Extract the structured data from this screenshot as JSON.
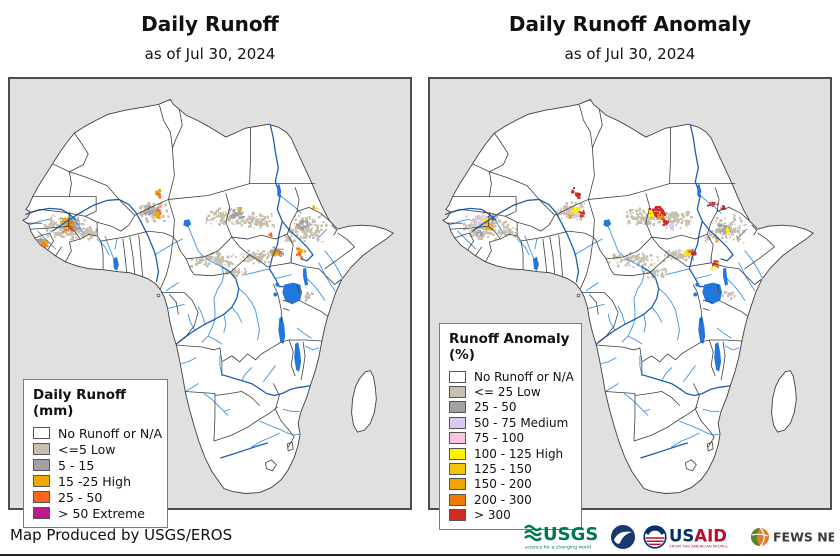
{
  "page": {
    "left_map": {
      "title": "Daily Runoff",
      "subtitle": "as of Jul 30, 2024",
      "legend": {
        "title": "Daily Runoff (mm)",
        "items": [
          {
            "label": "No Runoff or N/A",
            "color": "#FFFFFF"
          },
          {
            "label": "<=5 Low",
            "color": "#C8BFAF"
          },
          {
            "label": "5 - 15",
            "color": "#A2A1A6"
          },
          {
            "label": "15 -25 High",
            "color": "#EFA800"
          },
          {
            "label": "25 - 50",
            "color": "#F9671E"
          },
          {
            "label": "> 50 Extreme",
            "color": "#BC1A8D"
          }
        ]
      }
    },
    "right_map": {
      "title": "Daily Runoff Anomaly",
      "subtitle": "as of Jul 30, 2024",
      "legend": {
        "title": "Runoff Anomaly (%)",
        "items": [
          {
            "label": "No Runoff or N/A",
            "color": "#FFFFFF"
          },
          {
            "label": "<= 25 Low",
            "color": "#C8BFAF"
          },
          {
            "label": "25 - 50",
            "color": "#A2A1A6"
          },
          {
            "label": "50 - 75 Medium",
            "color": "#DCC9F0"
          },
          {
            "label": "75 - 100",
            "color": "#FBC3DF"
          },
          {
            "label": "100 - 125 High",
            "color": "#FFF100"
          },
          {
            "label": "125 - 150",
            "color": "#F3C500"
          },
          {
            "label": "150 - 200",
            "color": "#F4A300"
          },
          {
            "label": "200 - 300",
            "color": "#EF7B00"
          },
          {
            "label": "> 300",
            "color": "#D22B27"
          }
        ]
      }
    },
    "footer": {
      "credit": "Map Produced by USGS/EROS",
      "logos": {
        "usgs": {
          "text": "USGS",
          "tagline": "science for a changing world",
          "color": "#00794C"
        },
        "usaid": {
          "text_us": "US",
          "text_aid": "AID",
          "tagline": "FROM THE AMERICAN PEOPLE",
          "navy": "#002F6C",
          "red": "#BA0C2F"
        },
        "fewsnet": {
          "text": "FEWS NET"
        }
      }
    },
    "map_colors": {
      "ocean": "#E0E0E0",
      "land": "#FFFFFF",
      "border": "#3E3E3E",
      "river": "#4C9BE8",
      "major_river": "#1B5EAE",
      "lake": "#2277DD"
    }
  }
}
